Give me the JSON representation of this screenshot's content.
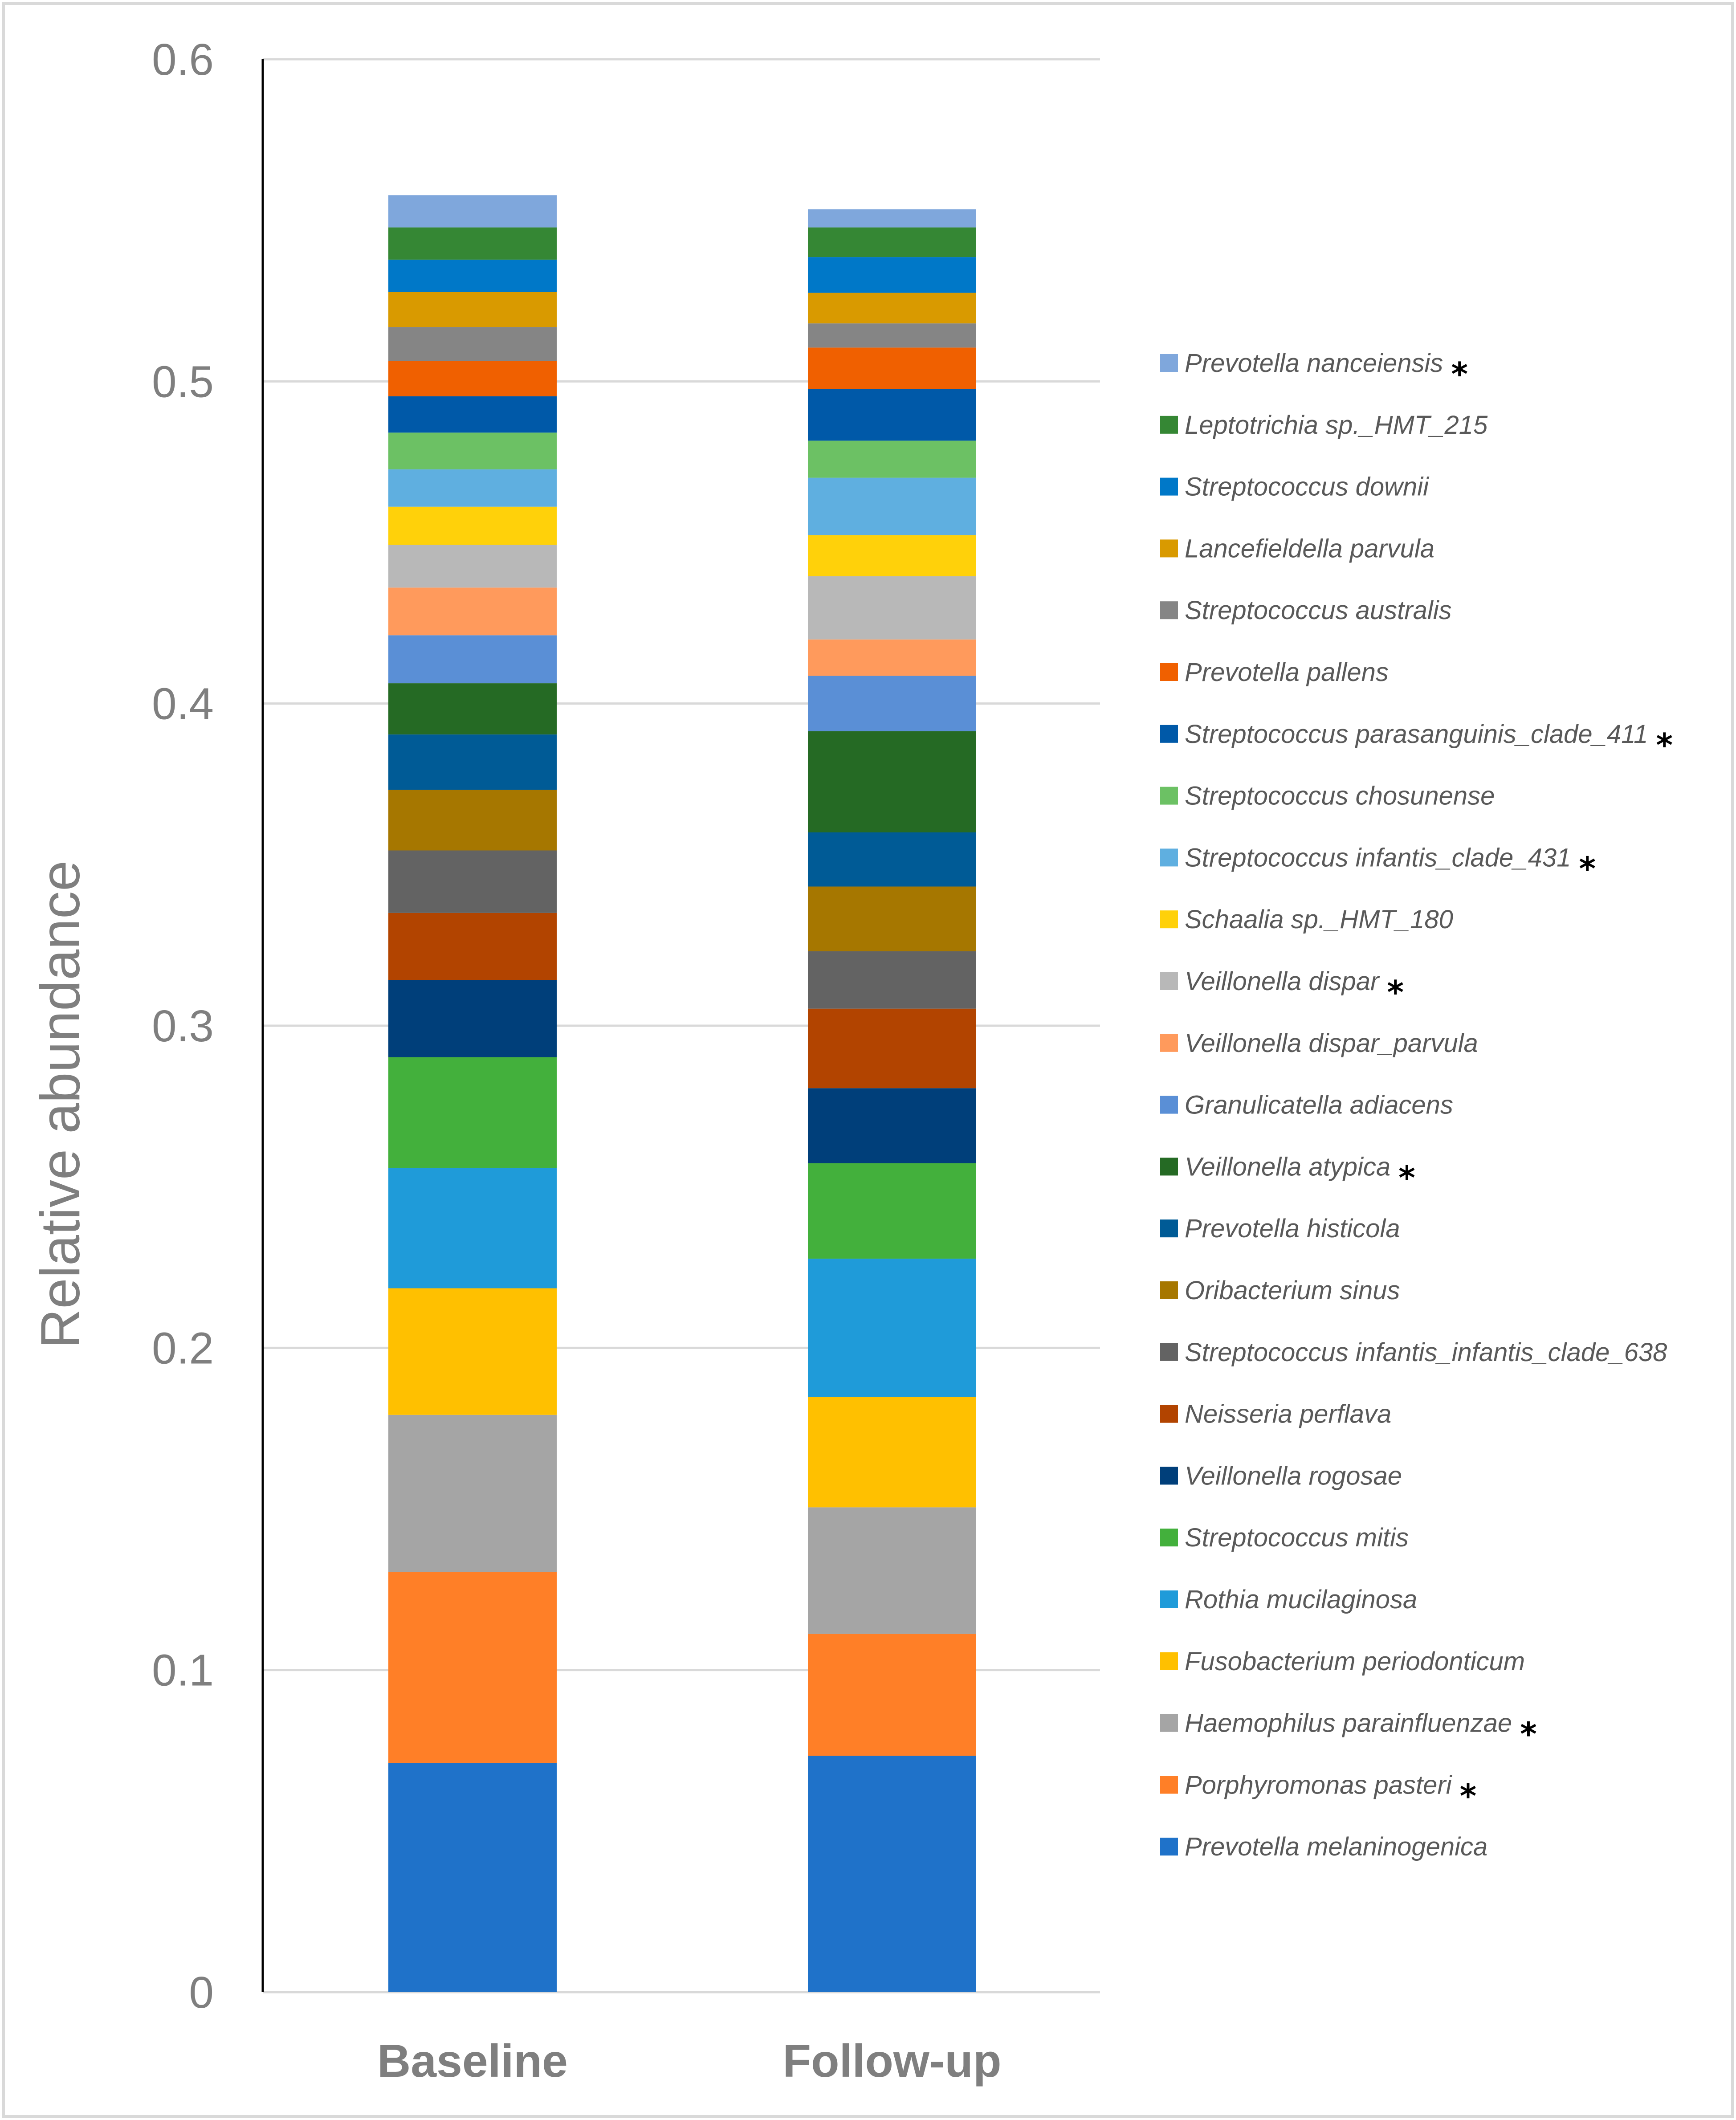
{
  "chart_data": {
    "type": "stacked-bar",
    "title": "",
    "xlabel": "",
    "ylabel": "Relative abundance",
    "ylim": [
      0,
      0.6
    ],
    "yticks": [
      0,
      0.1,
      0.2,
      0.3,
      0.4,
      0.5,
      0.6
    ],
    "ytick_labels": [
      "0",
      "0.1",
      "0.2",
      "0.3",
      "0.4",
      "0.5",
      "0.6"
    ],
    "grid": "horizontal",
    "legend_position": "right",
    "categories": [
      "Baseline",
      "Follow-up"
    ],
    "series": [
      {
        "name": "Prevotella melaninogenica",
        "color": "#1F72C9",
        "values": [
          0.0712,
          0.0734
        ],
        "significant": false
      },
      {
        "name": "Porphyromonas pasteri",
        "color": "#FF7F27",
        "values": [
          0.0593,
          0.0378
        ],
        "significant": true
      },
      {
        "name": "Haemophilus parainfluenzae",
        "color": "#A5A5A5",
        "values": [
          0.0487,
          0.0393
        ],
        "significant": true
      },
      {
        "name": "Fusobacterium periodonticum",
        "color": "#FFC000",
        "values": [
          0.0393,
          0.0342
        ],
        "significant": false
      },
      {
        "name": "Rothia mucilaginosa",
        "color": "#1F9BD9",
        "values": [
          0.0374,
          0.043
        ],
        "significant": false
      },
      {
        "name": "Streptococcus mitis",
        "color": "#43B03C",
        "values": [
          0.0343,
          0.0296
        ],
        "significant": false
      },
      {
        "name": "Veillonella rogosae",
        "color": "#003F7A",
        "values": [
          0.024,
          0.0233
        ],
        "significant": false
      },
      {
        "name": "Neisseria perflava",
        "color": "#B24400",
        "values": [
          0.0208,
          0.0247
        ],
        "significant": false
      },
      {
        "name": "Streptococcus infantis_infantis_clade_638",
        "color": "#636363",
        "values": [
          0.0194,
          0.0178
        ],
        "significant": false
      },
      {
        "name": "Oribacterium sinus",
        "color": "#A67700",
        "values": [
          0.0188,
          0.0201
        ],
        "significant": false
      },
      {
        "name": "Prevotella histicola",
        "color": "#005B96",
        "values": [
          0.0172,
          0.0168
        ],
        "significant": false
      },
      {
        "name": "Veillonella atypica",
        "color": "#256A24",
        "values": [
          0.0159,
          0.0314
        ],
        "significant": true
      },
      {
        "name": "Granulicatella adiacens",
        "color": "#5A8FD6",
        "values": [
          0.0149,
          0.0172
        ],
        "significant": false
      },
      {
        "name": "Veillonella dispar_parvula",
        "color": "#FF9A5C",
        "values": [
          0.0148,
          0.0113
        ],
        "significant": false
      },
      {
        "name": "Veillonella dispar",
        "color": "#B8B8B8",
        "values": [
          0.0133,
          0.0196
        ],
        "significant": true
      },
      {
        "name": "Schaalia sp._HMT_180",
        "color": "#FFD10A",
        "values": [
          0.0118,
          0.0128
        ],
        "significant": false
      },
      {
        "name": "Streptococcus infantis_clade_431",
        "color": "#5FAFE0",
        "values": [
          0.0116,
          0.0178
        ],
        "significant": true
      },
      {
        "name": "Streptococcus chosunense",
        "color": "#6CC164",
        "values": [
          0.0114,
          0.0115
        ],
        "significant": false
      },
      {
        "name": "Streptococcus parasanguinis_clade_411",
        "color": "#0059A8",
        "values": [
          0.0113,
          0.016
        ],
        "significant": true
      },
      {
        "name": "Prevotella pallens",
        "color": "#F06000",
        "values": [
          0.0109,
          0.0129
        ],
        "significant": false
      },
      {
        "name": "Streptococcus australis",
        "color": "#858585",
        "values": [
          0.0106,
          0.0075
        ],
        "significant": false
      },
      {
        "name": "Lancefieldella parvula",
        "color": "#D99A00",
        "values": [
          0.0108,
          0.0095
        ],
        "significant": false
      },
      {
        "name": "Streptococcus downii",
        "color": "#0078C8",
        "values": [
          0.0101,
          0.0111
        ],
        "significant": false
      },
      {
        "name": "Leptotrichia sp._HMT_215",
        "color": "#358734",
        "values": [
          0.01,
          0.0092
        ],
        "significant": false
      },
      {
        "name": "Prevotella nanceiensis",
        "color": "#7FA7DC",
        "values": [
          0.01,
          0.0056
        ],
        "significant": true
      }
    ]
  }
}
